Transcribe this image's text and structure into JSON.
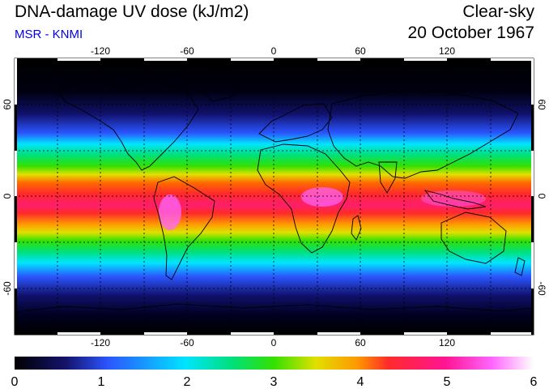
{
  "header": {
    "title": "DNA-damage UV dose (kJ/m2)",
    "subtitle": "MSR - KNMI",
    "condition": "Clear-sky",
    "date": "20 October 1967"
  },
  "axes": {
    "lon_ticks": [
      "-120",
      "-60",
      "0",
      "60",
      "120"
    ],
    "lat_ticks_left": [
      "60",
      "0",
      "-60"
    ],
    "lat_ticks_right": [
      "60",
      "0",
      "-60"
    ]
  },
  "colorbar": {
    "ticks": [
      "0",
      "1",
      "2",
      "3",
      "4",
      "5",
      "6"
    ],
    "stops": [
      "#000000",
      "#1a1aa0",
      "#2b55ff",
      "#00e5ff",
      "#00e07a",
      "#33e000",
      "#e0e000",
      "#ff9900",
      "#ff2a2a",
      "#ff1493",
      "#ff66ff",
      "#ffffff"
    ]
  },
  "colors": {
    "land_outline": "#000000",
    "grid": "#000000",
    "ocean_scale_background": "#000000"
  }
}
